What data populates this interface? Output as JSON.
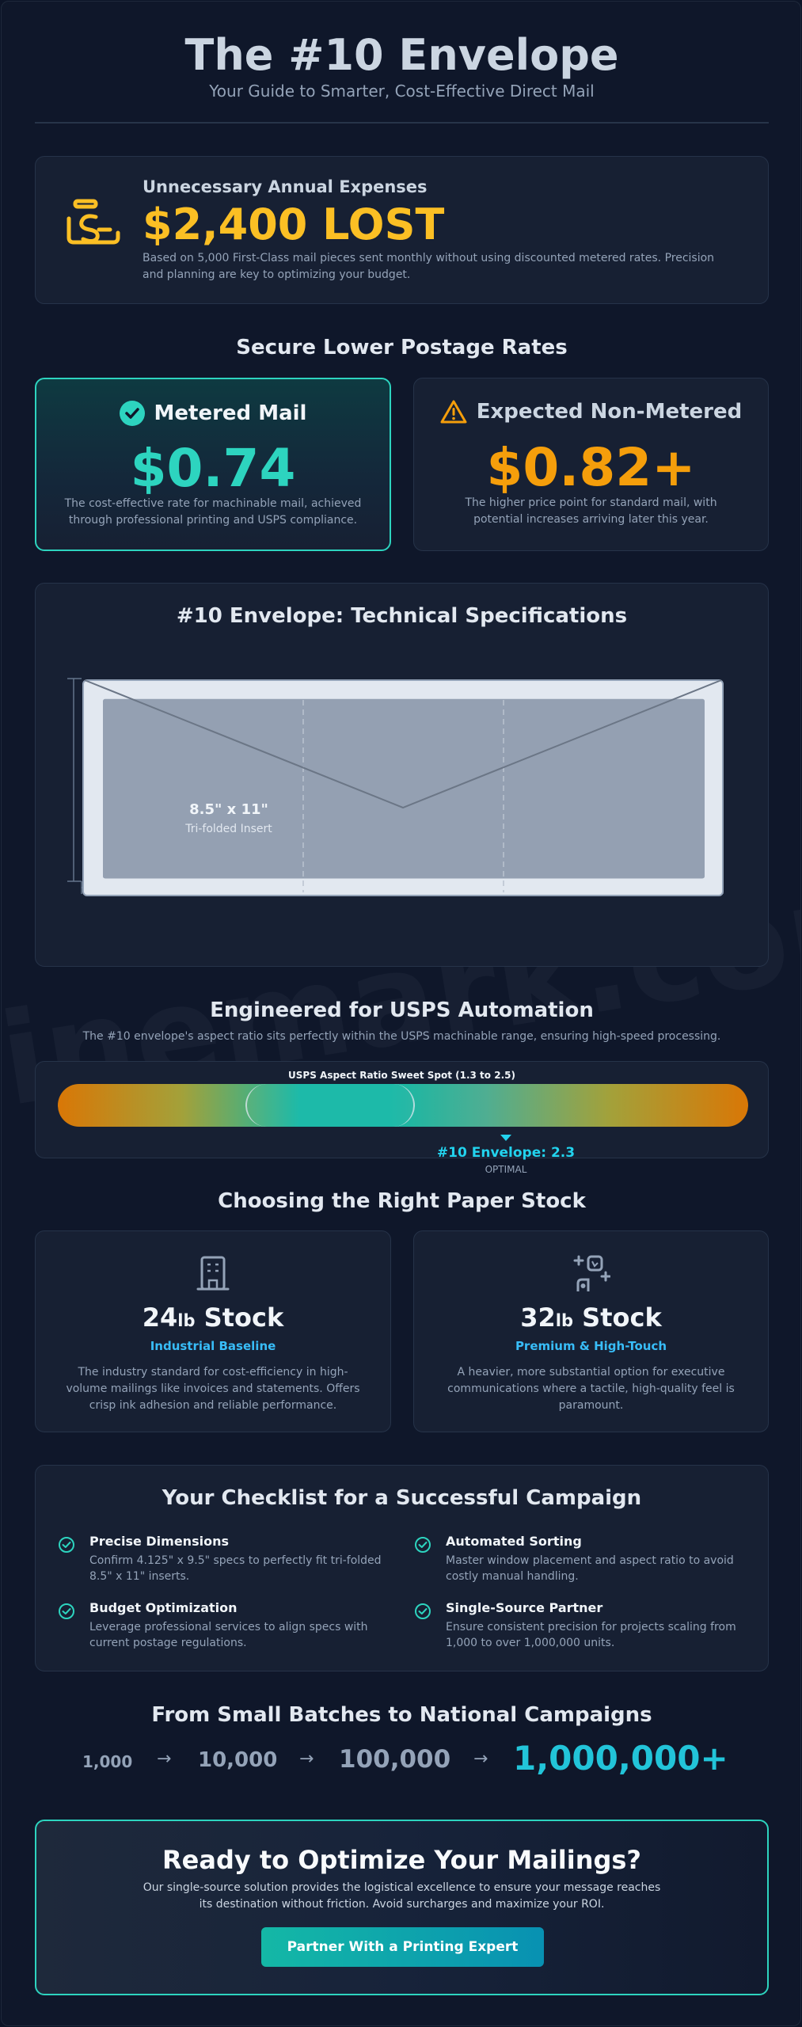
{
  "header": {
    "title": "The #10 Envelope",
    "subtitle": "Your Guide to Smarter, Cost-Effective Direct Mail"
  },
  "expenses": {
    "label": "Unnecessary Annual Expenses",
    "value": "$2,400 LOST",
    "description": "Based on 5,000 First-Class mail pieces sent monthly without using discounted metered rates. Precision and planning are key to optimizing your budget.",
    "icon": "money-hand-icon",
    "accent": "#fbbf24"
  },
  "rates": {
    "heading": "Secure Lower Postage Rates",
    "metered": {
      "title": "Metered Mail",
      "value": "$0.74",
      "description": "The cost-effective rate for machinable mail, achieved through professional printing and USPS compliance.",
      "icon": "check-circle-icon",
      "color": "#2dd4bf"
    },
    "non_metered": {
      "title": "Expected Non-Metered",
      "value": "$0.82+",
      "description": "The higher price point for standard mail, with potential increases arriving later this year.",
      "icon": "warning-triangle-icon",
      "color": "#f59e0b"
    }
  },
  "specs": {
    "heading": "#10 Envelope: Technical Specifications",
    "insert_size": "8.5\" x 11\"",
    "insert_label": "Tri-folded Insert"
  },
  "automation": {
    "heading": "Engineered for USPS Automation",
    "subheading": "The #10 envelope's aspect ratio sits perfectly within the USPS machinable range, ensuring high-speed processing.",
    "bar_label": "USPS Aspect Ratio Sweet Spot (1.3 to 2.5)",
    "marker_value": "#10 Envelope: 2.3",
    "marker_label": "OPTIMAL"
  },
  "stock": {
    "heading": "Choosing the Right Paper Stock",
    "items": [
      {
        "weight": "24",
        "unit": "lb",
        "suffix": " Stock",
        "tag": "Industrial Baseline",
        "description": "The industry standard for cost-efficiency in high-volume mailings like invoices and statements. Offers crisp ink adhesion and reliable performance.",
        "icon": "building-icon"
      },
      {
        "weight": "32",
        "unit": "lb",
        "suffix": " Stock",
        "tag": "Premium & High-Touch",
        "description": "A heavier, more substantial option for executive communications where a tactile, high-quality feel is paramount.",
        "icon": "sparkle-shapes-icon"
      }
    ]
  },
  "checklist": {
    "heading": "Your Checklist for a Successful Campaign",
    "items": [
      {
        "title": "Precise Dimensions",
        "description": "Confirm 4.125\" x 9.5\" specs to perfectly fit tri-folded 8.5\" x 11\" inserts."
      },
      {
        "title": "Automated Sorting",
        "description": "Master window placement and aspect ratio to avoid costly manual handling."
      },
      {
        "title": "Budget Optimization",
        "description": "Leverage professional services to align specs with current postage regulations."
      },
      {
        "title": "Single-Source Partner",
        "description": "Ensure consistent precision for projects scaling from 1,000 to over 1,000,000 units."
      }
    ]
  },
  "scale": {
    "heading": "From Small Batches to National Campaigns",
    "steps": [
      "1,000",
      "10,000",
      "100,000",
      "1,000,000+"
    ],
    "arrow": "→"
  },
  "cta": {
    "heading": "Ready to Optimize Your Mailings?",
    "description_line1": "Our single-source solution provides the logistical excellence to ensure your message reaches",
    "description_line2": "its destination without friction. Avoid surcharges and maximize your ROI.",
    "button_label": "Partner With a Printing Expert"
  },
  "watermark": "linemark.com"
}
